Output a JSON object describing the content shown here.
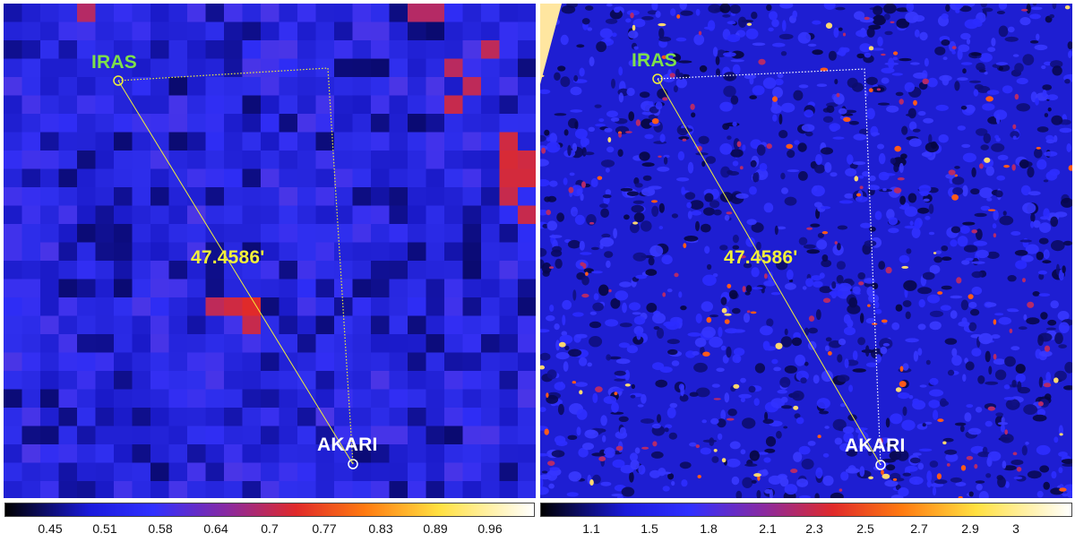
{
  "left_panel": {
    "label_iras": "IRAS",
    "label_akari": "AKARI",
    "label_distance": "47.4586'",
    "colorbar_ticks": [
      "0.45",
      "0.51",
      "0.58",
      "0.64",
      "0.7",
      "0.77",
      "0.83",
      "0.89",
      "0.96"
    ]
  },
  "right_panel": {
    "label_iras": "IRAS",
    "label_akari": "AKARI",
    "label_distance": "47.4586'",
    "colorbar_ticks": [
      "1.1",
      "1.5",
      "1.8",
      "2.1",
      "2.3",
      "2.5",
      "2.7",
      "2.9",
      "3"
    ]
  },
  "colors": {
    "colormap": [
      "#000000",
      "#1a1adc",
      "#3030ff",
      "#8a2aa0",
      "#e02a2a",
      "#ff7a10",
      "#ffe040",
      "#ffffff"
    ],
    "iras_label": "#7ee04a",
    "akari_label": "#ffffff",
    "distance_label": "#f2f03a",
    "measure_line": "#f2f03a"
  }
}
